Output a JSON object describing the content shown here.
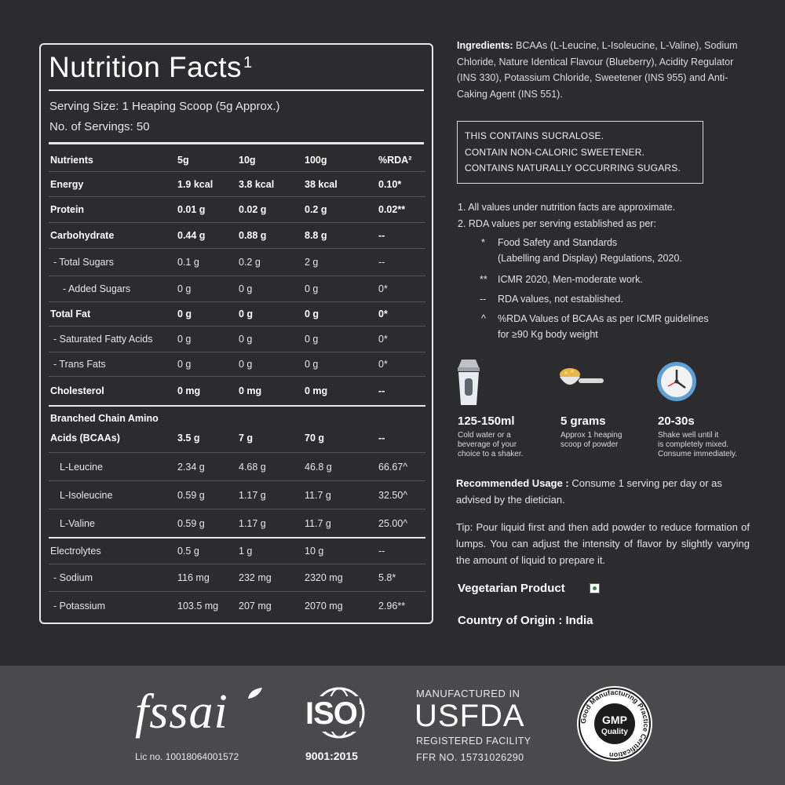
{
  "nutrition": {
    "title": "Nutrition Facts",
    "title_sup": "1",
    "serving_size": "Serving Size: 1 Heaping Scoop (5g Approx.)",
    "servings": "No. of Servings: 50",
    "headers": [
      "Nutrients",
      "5g",
      "10g",
      "100g",
      "%RDA²"
    ],
    "rows": [
      {
        "name": "Energy",
        "v5": "1.9 kcal",
        "v10": "3.8 kcal",
        "v100": "38 kcal",
        "rda": "0.10*"
      },
      {
        "name": "Protein",
        "v5": "0.01 g",
        "v10": "0.02 g",
        "v100": "0.2 g",
        "rda": "0.02**"
      },
      {
        "name": "Carbohydrate",
        "v5": "0.44 g",
        "v10": "0.88 g",
        "v100": "8.8 g",
        "rda": "--"
      },
      {
        "name": "- Total Sugars",
        "v5": "0.1 g",
        "v10": "0.2 g",
        "v100": "2 g",
        "rda": "--"
      },
      {
        "name": "- Added Sugars",
        "v5": "0 g",
        "v10": "0 g",
        "v100": "0 g",
        "rda": "0*"
      },
      {
        "name": "Total Fat",
        "v5": "0 g",
        "v10": "0 g",
        "v100": "0 g",
        "rda": "0*"
      },
      {
        "name": "- Saturated Fatty Acids",
        "v5": "0 g",
        "v10": "0 g",
        "v100": "0 g",
        "rda": "0*"
      },
      {
        "name": "- Trans Fats",
        "v5": "0 g",
        "v10": "0 g",
        "v100": "0 g",
        "rda": "0*"
      },
      {
        "name": "Cholesterol",
        "v5": "0 mg",
        "v10": "0 mg",
        "v100": "0 mg",
        "rda": "--"
      },
      {
        "name": "Branched Chain Amino",
        "v5": "",
        "v10": "",
        "v100": "",
        "rda": ""
      },
      {
        "name": "Acids (BCAAs)",
        "v5": "3.5 g",
        "v10": "7 g",
        "v100": "70 g",
        "rda": "--"
      },
      {
        "name": "L-Leucine",
        "v5": "2.34 g",
        "v10": "4.68 g",
        "v100": "46.8 g",
        "rda": "66.67^"
      },
      {
        "name": "L-Isoleucine",
        "v5": "0.59 g",
        "v10": "1.17 g",
        "v100": "11.7 g",
        "rda": "32.50^"
      },
      {
        "name": "L-Valine",
        "v5": "0.59 g",
        "v10": "1.17 g",
        "v100": "11.7 g",
        "rda": "25.00^"
      },
      {
        "name": "Electrolytes",
        "v5": "0.5 g",
        "v10": "1 g",
        "v100": "10 g",
        "rda": "--"
      },
      {
        "name": "- Sodium",
        "v5": "116 mg",
        "v10": "232 mg",
        "v100": "2320 mg",
        "rda": "5.8*"
      },
      {
        "name": "- Potassium",
        "v5": "103.5 mg",
        "v10": "207 mg",
        "v100": "2070 mg",
        "rda": "2.96**"
      }
    ]
  },
  "ingredients": {
    "label": "Ingredients:",
    "text": " BCAAs (L-Leucine, L-Isoleucine, L-Valine), Sodium Chloride, Nature Identical Flavour (Blueberry), Acidity Regulator (INS 330), Potassium Chloride, Sweetener (INS 955) and Anti-Caking Agent (INS 551)."
  },
  "warnings": [
    "THIS CONTAINS SUCRALOSE.",
    "CONTAIN NON-CALORIC SWEETENER.",
    "CONTAINS NATURALLY OCCURRING SUGARS."
  ],
  "notes": {
    "n1": "1. All values under nutrition facts are approximate.",
    "n2": "2. RDA values per serving established as per:",
    "s1_mark": "*",
    "s1_a": "Food Safety and Standards",
    "s1_b": "(Labelling  and  Display) Regulations, 2020.",
    "s2_mark": "**",
    "s2": "ICMR 2020, Men-moderate work.",
    "s3_mark": "--",
    "s3": "RDA values, not established.",
    "s4_mark": "^",
    "s4_a": "%RDA Values of BCAAs as per ICMR guidelines",
    "s4_b": "for ≥90 Kg body weight"
  },
  "prep": [
    {
      "icon": "shaker-icon",
      "title": "125-150ml",
      "lines": [
        "Cold water or a",
        "beverage of your",
        "choice to a shaker."
      ]
    },
    {
      "icon": "scoop-icon",
      "title": "5 grams",
      "lines": [
        "Approx 1 heaping",
        "scoop of powder"
      ]
    },
    {
      "icon": "clock-icon",
      "title": "20-30s",
      "lines": [
        "Shake well until it",
        "is completely mixed.",
        "Consume immediately."
      ]
    }
  ],
  "usage": {
    "label": "Recommended Usage :",
    "text": " Consume 1 serving per day or as advised by the dietician."
  },
  "tip": "Tip: Pour liquid first and then add powder to reduce formation of lumps. You can adjust the intensity of flavor by slightly varying the amount of liquid to prepare it.",
  "veg": "Vegetarian Product",
  "origin": "Country of Origin : India",
  "certs": {
    "fssai_logo": "fssai",
    "fssai_lic": "Lic no. 10018064001572",
    "iso_logo": "ISO",
    "iso": "9001:2015",
    "usfda_top": "MANUFACTURED IN",
    "usfda": "USFDA",
    "usfda_reg": "REGISTERED FACILITY",
    "usfda_ffr": "FFR NO. 15731026290",
    "gmp": "GMP",
    "gmp_sub": "Quality",
    "gmp_ring": "Good Manufacturing Practice Certification"
  },
  "colors": {
    "background": "#2c2c2e",
    "footer": "#4a4a4d",
    "veg_green": "#2e8b3a"
  }
}
